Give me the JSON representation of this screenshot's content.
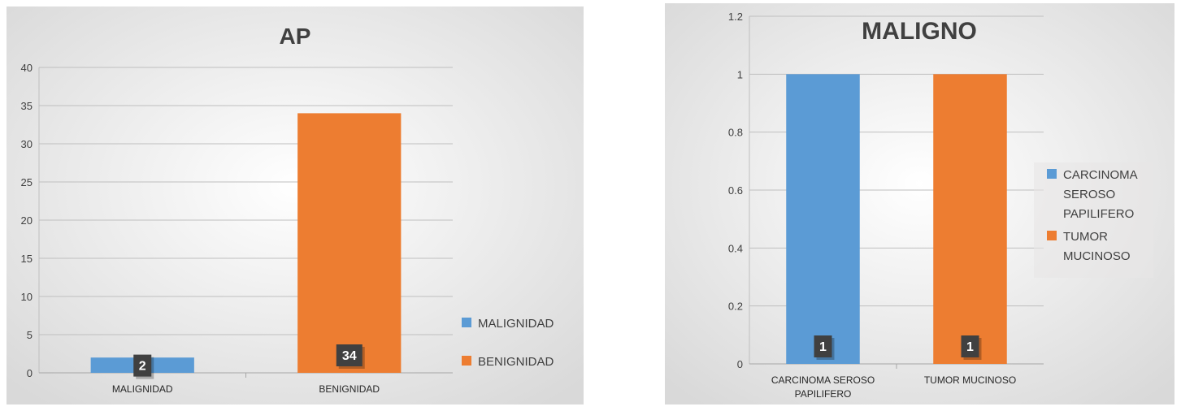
{
  "chart_data": [
    {
      "type": "bar",
      "title": "AP",
      "categories": [
        "MALIGNIDAD",
        "BENIGNIDAD"
      ],
      "values": [
        2,
        34
      ],
      "data_labels": [
        "2",
        "34"
      ],
      "colors": [
        "#5b9bd5",
        "#ed7d31"
      ],
      "ylim": [
        0,
        40
      ],
      "yticks": [
        0,
        5,
        10,
        15,
        20,
        25,
        30,
        35,
        40
      ],
      "ytick_labels": [
        "0",
        "5",
        "10",
        "15",
        "20",
        "25",
        "30",
        "35",
        "40"
      ],
      "grid": true,
      "legend": {
        "placement": "right-bottom",
        "entries": [
          {
            "label": "MALIGNIDAD",
            "color": "#5b9bd5"
          },
          {
            "label": "BENIGNIDAD",
            "color": "#ed7d31"
          }
        ]
      }
    },
    {
      "type": "bar",
      "title": "MALIGNO",
      "categories": [
        "CARCINOMA SEROSO PAPILIFERO",
        "TUMOR MUCINOSO"
      ],
      "category_lines": [
        [
          "CARCINOMA SEROSO",
          "PAPILIFERO"
        ],
        [
          "TUMOR MUCINOSO"
        ]
      ],
      "values": [
        1,
        1
      ],
      "data_labels": [
        "1",
        "1"
      ],
      "colors": [
        "#5b9bd5",
        "#ed7d31"
      ],
      "ylim": [
        0,
        1.2
      ],
      "yticks": [
        0,
        0.2,
        0.4,
        0.6,
        0.8,
        1,
        1.2
      ],
      "ytick_labels": [
        "0",
        "0.2",
        "0.4",
        "0.6",
        "0.8",
        "1",
        "1.2"
      ],
      "grid": true,
      "legend": {
        "placement": "right",
        "entries": [
          {
            "label_lines": [
              "CARCINOMA",
              "SEROSO",
              "PAPILIFERO"
            ],
            "color": "#5b9bd5"
          },
          {
            "label_lines": [
              "TUMOR",
              "MUCINOSO"
            ],
            "color": "#ed7d31"
          }
        ]
      }
    }
  ]
}
